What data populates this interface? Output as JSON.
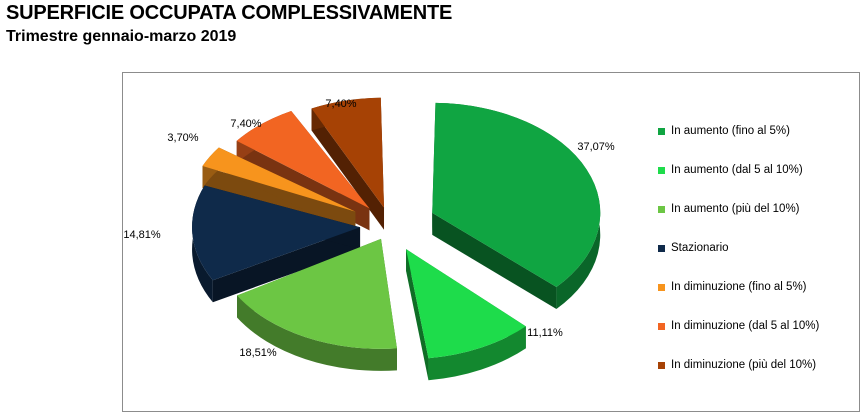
{
  "header": {
    "title": "SUPERFICIE OCCUPATA COMPLESSIVAMENTE",
    "subtitle": "Trimestre gennaio-marzo 2019"
  },
  "chart_data": {
    "type": "pie",
    "title": "",
    "categories": [
      "In aumento (fino al 5%)",
      "In aumento (dal 5 al 10%)",
      "In aumento (più del 10%)",
      "Stazionario",
      "In diminuzione (fino al 5%)",
      "In diminuzione (dal 5 al 10%)",
      "In diminuzione (più del 10%)"
    ],
    "values": [
      37.07,
      11.11,
      18.51,
      14.81,
      3.7,
      7.4,
      7.4
    ],
    "labels": [
      "37,07%",
      "11,11%",
      "18,51%",
      "14,81%",
      "3,70%",
      "7,40%",
      "7,40%"
    ],
    "colors": [
      "#10a542",
      "#1edc4b",
      "#6cc644",
      "#0f2a4a",
      "#f7941d",
      "#f26522",
      "#a64205"
    ],
    "style": "3d-exploded",
    "legend_position": "right"
  }
}
